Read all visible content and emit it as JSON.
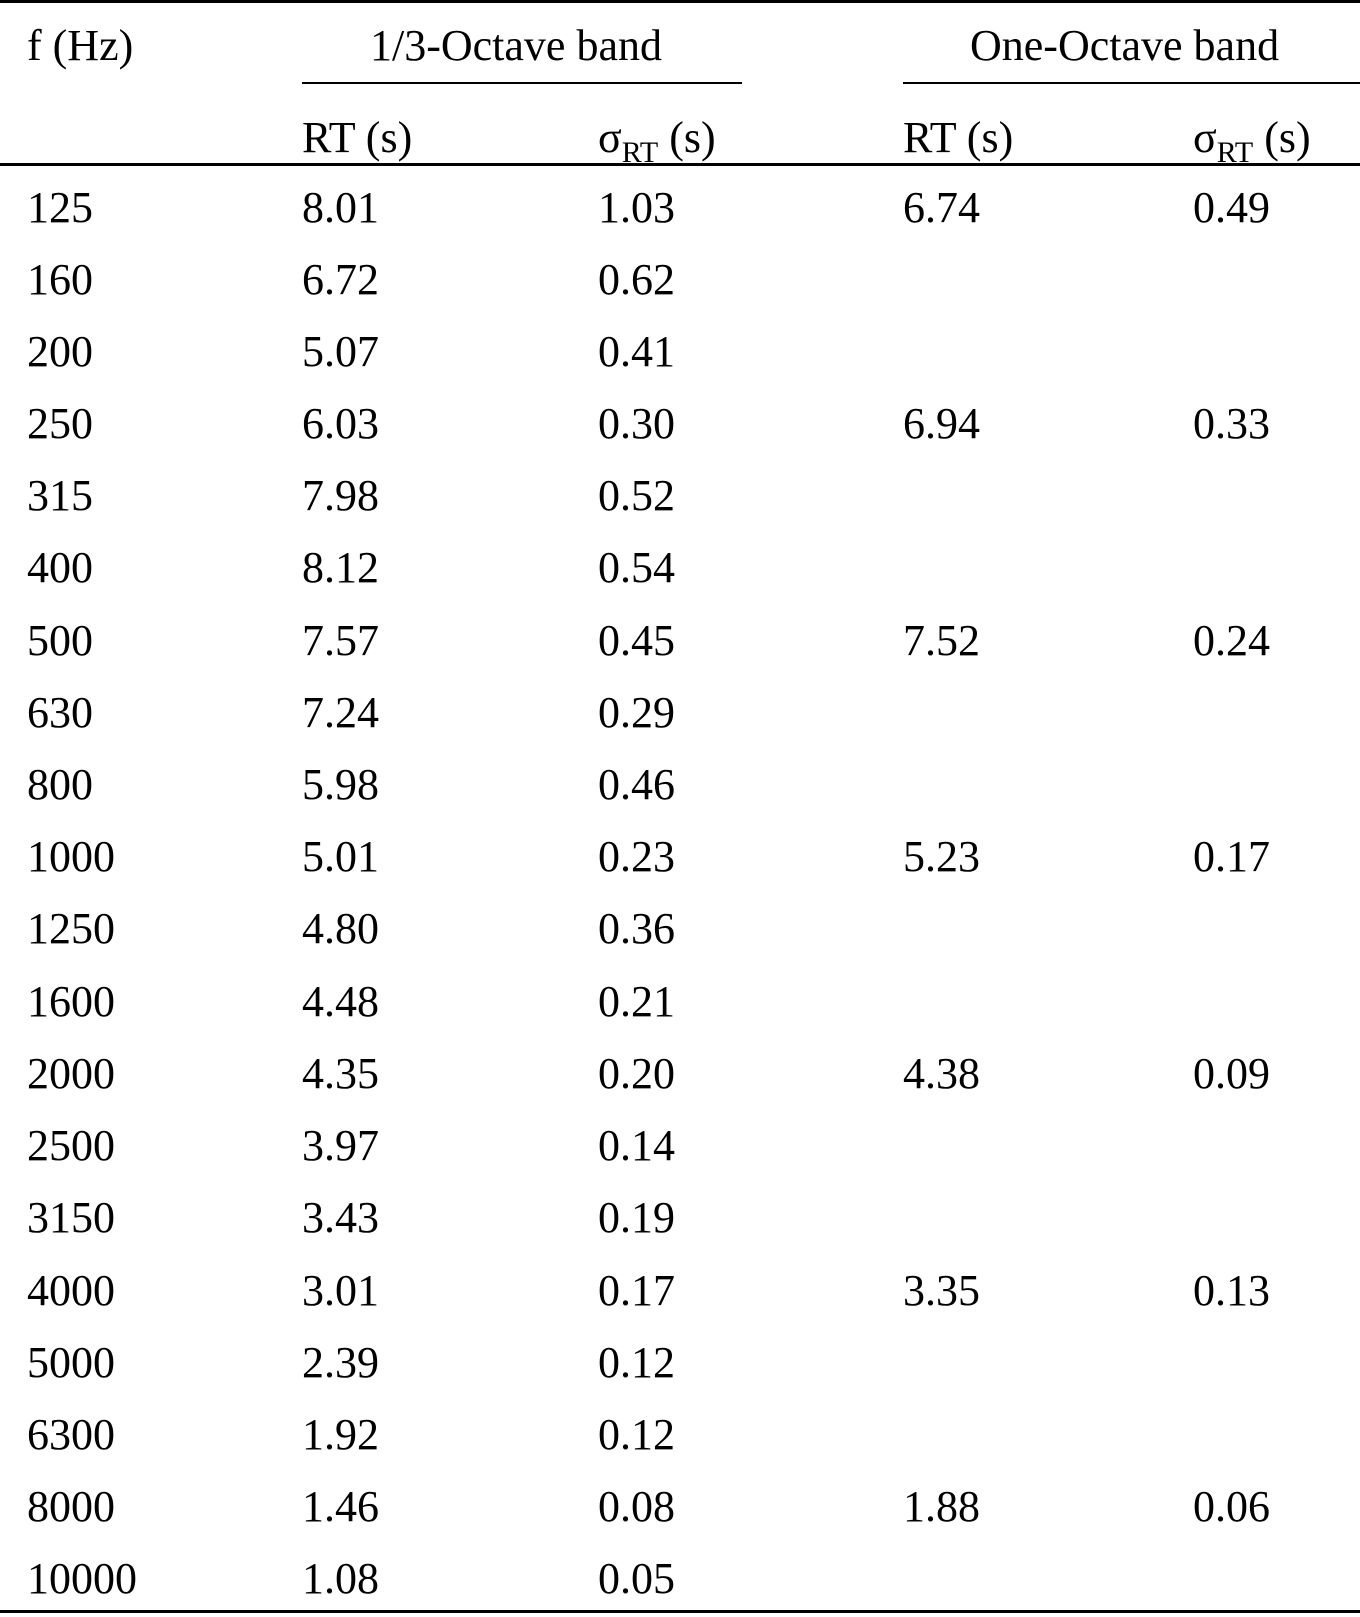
{
  "header": {
    "freq_label": "f (Hz)",
    "group1_label": "1/3-Octave band",
    "group2_label": "One-Octave band",
    "rt_label": "RT (s)",
    "sigma_symbol": "σ",
    "sigma_subscript": "RT",
    "sigma_unit": " (s)"
  },
  "rows": [
    {
      "f": "125",
      "rt_third": "8.01",
      "sd_third": "1.03",
      "rt_oct": "6.74",
      "sd_oct": "0.49"
    },
    {
      "f": "160",
      "rt_third": "6.72",
      "sd_third": "0.62",
      "rt_oct": "",
      "sd_oct": ""
    },
    {
      "f": "200",
      "rt_third": "5.07",
      "sd_third": "0.41",
      "rt_oct": "",
      "sd_oct": ""
    },
    {
      "f": "250",
      "rt_third": "6.03",
      "sd_third": "0.30",
      "rt_oct": "6.94",
      "sd_oct": "0.33"
    },
    {
      "f": "315",
      "rt_third": "7.98",
      "sd_third": "0.52",
      "rt_oct": "",
      "sd_oct": ""
    },
    {
      "f": "400",
      "rt_third": "8.12",
      "sd_third": "0.54",
      "rt_oct": "",
      "sd_oct": ""
    },
    {
      "f": "500",
      "rt_third": "7.57",
      "sd_third": "0.45",
      "rt_oct": "7.52",
      "sd_oct": "0.24"
    },
    {
      "f": "630",
      "rt_third": "7.24",
      "sd_third": "0.29",
      "rt_oct": "",
      "sd_oct": ""
    },
    {
      "f": "800",
      "rt_third": "5.98",
      "sd_third": "0.46",
      "rt_oct": "",
      "sd_oct": ""
    },
    {
      "f": "1000",
      "rt_third": "5.01",
      "sd_third": "0.23",
      "rt_oct": "5.23",
      "sd_oct": "0.17"
    },
    {
      "f": "1250",
      "rt_third": "4.80",
      "sd_third": "0.36",
      "rt_oct": "",
      "sd_oct": ""
    },
    {
      "f": "1600",
      "rt_third": "4.48",
      "sd_third": "0.21",
      "rt_oct": "",
      "sd_oct": ""
    },
    {
      "f": "2000",
      "rt_third": "4.35",
      "sd_third": "0.20",
      "rt_oct": "4.38",
      "sd_oct": "0.09"
    },
    {
      "f": "2500",
      "rt_third": "3.97",
      "sd_third": "0.14",
      "rt_oct": "",
      "sd_oct": ""
    },
    {
      "f": "3150",
      "rt_third": "3.43",
      "sd_third": "0.19",
      "rt_oct": "",
      "sd_oct": ""
    },
    {
      "f": "4000",
      "rt_third": "3.01",
      "sd_third": "0.17",
      "rt_oct": "3.35",
      "sd_oct": "0.13"
    },
    {
      "f": "5000",
      "rt_third": "2.39",
      "sd_third": "0.12",
      "rt_oct": "",
      "sd_oct": ""
    },
    {
      "f": "6300",
      "rt_third": "1.92",
      "sd_third": "0.12",
      "rt_oct": "",
      "sd_oct": ""
    },
    {
      "f": "8000",
      "rt_third": "1.46",
      "sd_third": "0.08",
      "rt_oct": "1.88",
      "sd_oct": "0.06"
    },
    {
      "f": "10000",
      "rt_third": "1.08",
      "sd_third": "0.05",
      "rt_oct": "",
      "sd_oct": ""
    }
  ]
}
